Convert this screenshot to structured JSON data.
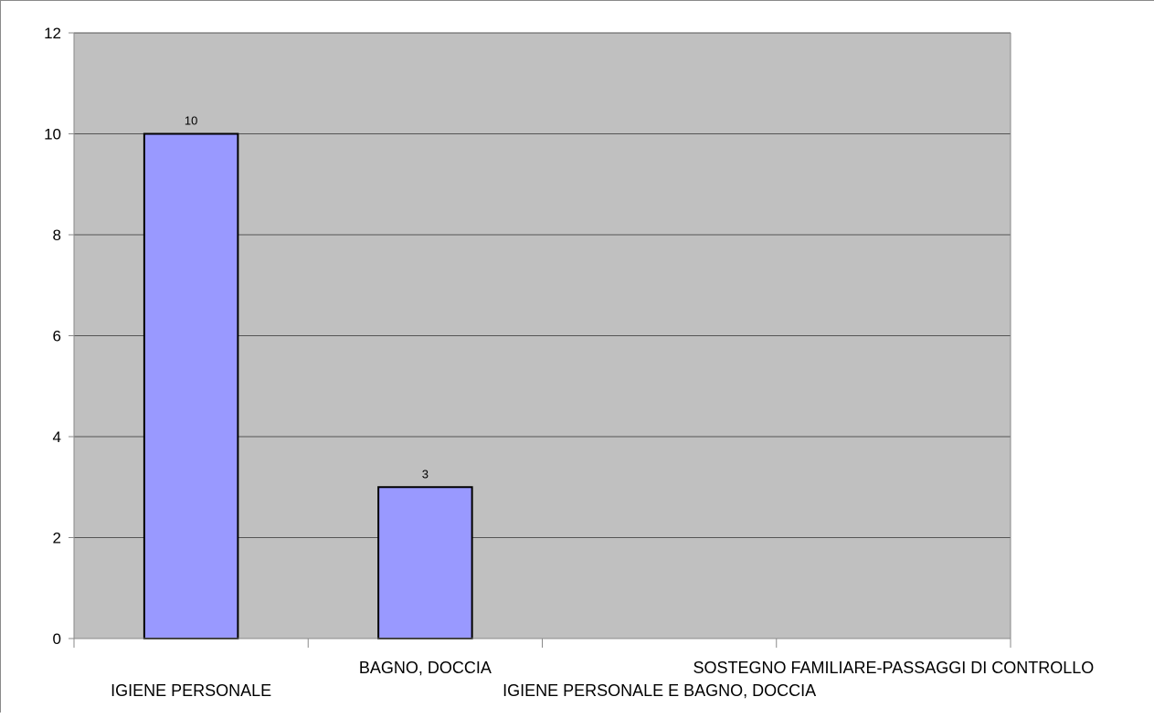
{
  "chart_data": {
    "type": "bar",
    "categories": [
      "IGIENE PERSONALE",
      "BAGNO, DOCCIA",
      "IGIENE PERSONALE E BAGNO, DOCCIA",
      "SOSTEGNO FAMILIARE-PASSAGGI DI CONTROLLO"
    ],
    "values": [
      10,
      3,
      0,
      0
    ],
    "data_labels": [
      "10",
      "3",
      "",
      ""
    ],
    "ylim": [
      0,
      12
    ],
    "yticks": [
      0,
      2,
      4,
      6,
      8,
      10,
      12
    ],
    "title": "",
    "xlabel": "",
    "ylabel": "",
    "grid": true,
    "legend": "none",
    "colors": {
      "plot_background": "#c0c0c0",
      "bar_fill": "#9999ff",
      "bar_stroke": "#000000",
      "gridline": "#555555",
      "axis": "#8a8a8a"
    }
  }
}
